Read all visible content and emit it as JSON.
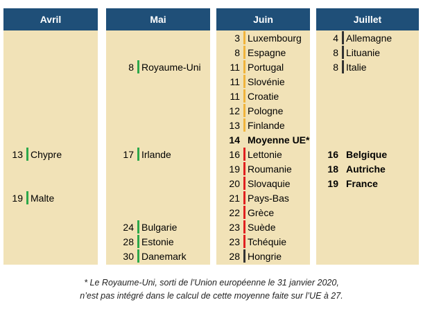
{
  "colors": {
    "header_bg": "#1f4f78",
    "panel_bg": "#f1e2b7",
    "green": "#2ca84a",
    "orange": "#f0b43c",
    "red": "#e02020",
    "dark": "#333333"
  },
  "columns": [
    {
      "header": "Avril",
      "entries": [
        {
          "day": "13",
          "country": "Chypre",
          "bar": "green"
        },
        {
          "day": "19",
          "country": "Malte",
          "bar": "green"
        }
      ]
    },
    {
      "header": "Mai",
      "entries": [
        {
          "day": "8",
          "country": "Royaume-Uni",
          "bar": "green"
        },
        {
          "day": "17",
          "country": "Irlande",
          "bar": "green"
        },
        {
          "day": "24",
          "country": "Bulgarie",
          "bar": "green"
        },
        {
          "day": "28",
          "country": "Estonie",
          "bar": "green"
        },
        {
          "day": "30",
          "country": "Danemark",
          "bar": "green"
        }
      ]
    },
    {
      "header": "Juin",
      "entries": [
        {
          "day": "3",
          "country": "Luxembourg",
          "bar": "orange"
        },
        {
          "day": "8",
          "country": "Espagne",
          "bar": "orange"
        },
        {
          "day": "11",
          "country": "Portugal",
          "bar": "orange"
        },
        {
          "day": "11",
          "country": "Slovénie",
          "bar": "orange"
        },
        {
          "day": "11",
          "country": "Croatie",
          "bar": "orange"
        },
        {
          "day": "12",
          "country": "Pologne",
          "bar": "orange"
        },
        {
          "day": "13",
          "country": "Finlande",
          "bar": "orange"
        },
        {
          "day": "14",
          "country": "Moyenne UE*",
          "bar": "none",
          "bold": true
        },
        {
          "day": "16",
          "country": "Lettonie",
          "bar": "red"
        },
        {
          "day": "19",
          "country": "Roumanie",
          "bar": "red"
        },
        {
          "day": "20",
          "country": "Slovaquie",
          "bar": "red"
        },
        {
          "day": "21",
          "country": "Pays-Bas",
          "bar": "red"
        },
        {
          "day": "22",
          "country": "Grèce",
          "bar": "red"
        },
        {
          "day": "23",
          "country": "Suède",
          "bar": "red"
        },
        {
          "day": "23",
          "country": "Tchéquie",
          "bar": "red"
        },
        {
          "day": "28",
          "country": "Hongrie",
          "bar": "dark"
        }
      ]
    },
    {
      "header": "Juillet",
      "entries": [
        {
          "day": "4",
          "country": "Allemagne",
          "bar": "dark"
        },
        {
          "day": "8",
          "country": "Lituanie",
          "bar": "dark"
        },
        {
          "day": "8",
          "country": "Italie",
          "bar": "dark"
        },
        {
          "day": "16",
          "country": "Belgique",
          "bar": "none",
          "bold": true
        },
        {
          "day": "18",
          "country": "Autriche",
          "bar": "none",
          "bold": true
        },
        {
          "day": "19",
          "country": "France",
          "bar": "none",
          "bold": true
        }
      ]
    }
  ],
  "footnote": {
    "line1": "* Le Royaume-Uni, sorti de l’Union européenne le 31 janvier 2020,",
    "line2": "n’est pas intégré dans le calcul de cette moyenne faite sur l’UE à 27."
  }
}
